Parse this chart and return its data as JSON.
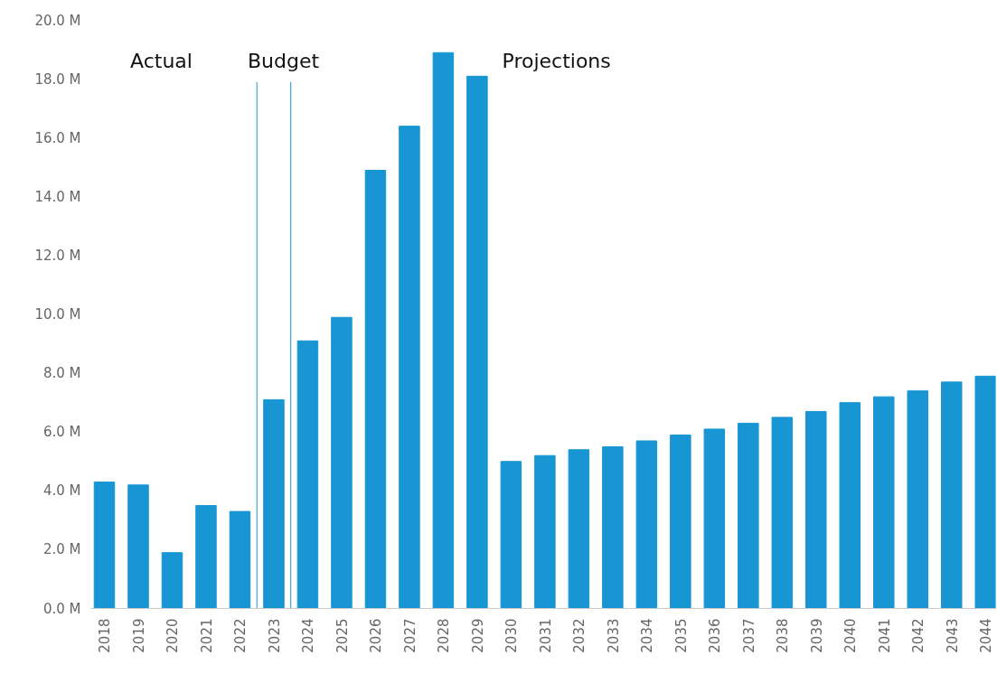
{
  "chart_data": {
    "type": "bar",
    "x": [
      2018,
      2019,
      2020,
      2021,
      2022,
      2023,
      2024,
      2025,
      2026,
      2027,
      2028,
      2029,
      2030,
      2031,
      2032,
      2033,
      2034,
      2035,
      2036,
      2037,
      2038,
      2039,
      2040,
      2041,
      2042,
      2043,
      2044
    ],
    "values": [
      4.3,
      4.2,
      1.9,
      3.5,
      3.3,
      7.1,
      9.1,
      9.9,
      14.9,
      16.4,
      18.9,
      18.1,
      5.0,
      5.2,
      5.4,
      5.5,
      5.7,
      5.9,
      6.1,
      6.3,
      6.5,
      6.7,
      7.0,
      7.2,
      7.4,
      7.7,
      7.9
    ],
    "color": "#1896d4",
    "xlim": [
      2017.6,
      2044.3
    ],
    "xticks": [
      2018,
      2019,
      2020,
      2021,
      2022,
      2023,
      2024,
      2025,
      2026,
      2027,
      2028,
      2029,
      2030,
      2031,
      2032,
      2033,
      2034,
      2035,
      2036,
      2037,
      2038,
      2039,
      2040,
      2041,
      2042,
      2043,
      2044
    ],
    "ylim": [
      0,
      20
    ],
    "yticks": [
      {
        "value": 0,
        "label": "0.0 M"
      },
      {
        "value": 2,
        "label": "2.0 M"
      },
      {
        "value": 4,
        "label": "4.0 M"
      },
      {
        "value": 6,
        "label": "6.0 M"
      },
      {
        "value": 8,
        "label": "8.0 M"
      },
      {
        "value": 10,
        "label": "10.0 M"
      },
      {
        "value": 12,
        "label": "12.0 M"
      },
      {
        "value": 14,
        "label": "14.0 M"
      },
      {
        "value": 16,
        "label": "16.0 M"
      },
      {
        "value": 18,
        "label": "18.0 M"
      },
      {
        "value": 20,
        "label": "20.0 M"
      }
    ],
    "ref_lines": [
      {
        "axis": "x",
        "value": 2022.5,
        "color": "#1896d4"
      },
      {
        "axis": "x",
        "value": 2023.5,
        "color": "#1896d4"
      }
    ],
    "annotations": [
      "Actual",
      "Budget",
      "Projections"
    ],
    "grid": false
  }
}
